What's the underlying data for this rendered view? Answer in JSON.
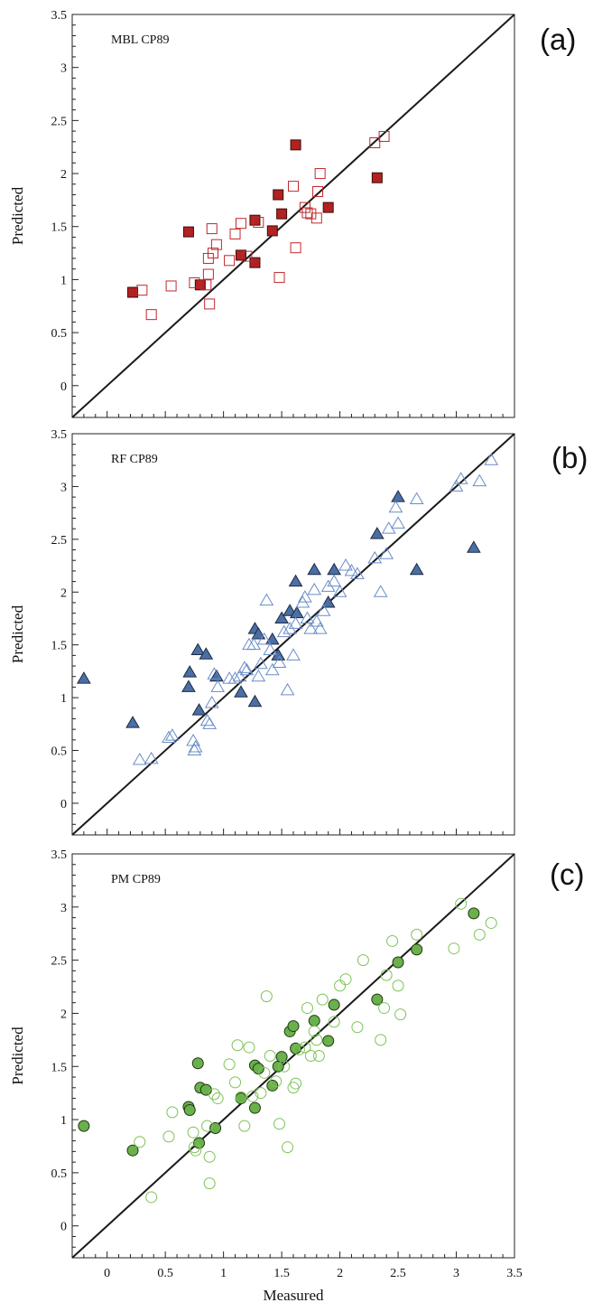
{
  "chart_data": [
    {
      "type": "scatter",
      "panel_label": "(a)",
      "annotation": "MBL CP89",
      "ylabel": "Predicted",
      "xlim": [
        -0.3,
        3.5
      ],
      "ylim": [
        -0.3,
        3.5
      ],
      "yticks": [
        "0",
        "0.5",
        "1",
        "1.5",
        "2",
        "2.5",
        "3",
        "3.5"
      ],
      "identity_line": true,
      "series": [
        {
          "marker": "square",
          "filled": true,
          "color": "#b22222",
          "points": [
            [
              0.22,
              0.88
            ],
            [
              0.8,
              0.95
            ],
            [
              0.7,
              1.45
            ],
            [
              1.15,
              1.23
            ],
            [
              1.27,
              1.16
            ],
            [
              1.27,
              1.56
            ],
            [
              1.42,
              1.46
            ],
            [
              1.47,
              1.8
            ],
            [
              1.5,
              1.62
            ],
            [
              1.62,
              2.27
            ],
            [
              1.9,
              1.68
            ],
            [
              2.32,
              1.96
            ]
          ]
        },
        {
          "marker": "square",
          "filled": false,
          "color": "#c0282d",
          "points": [
            [
              0.3,
              0.9
            ],
            [
              0.38,
              0.67
            ],
            [
              0.55,
              0.94
            ],
            [
              0.75,
              0.97
            ],
            [
              0.85,
              0.95
            ],
            [
              0.87,
              1.05
            ],
            [
              0.87,
              1.2
            ],
            [
              0.88,
              0.77
            ],
            [
              0.9,
              1.48
            ],
            [
              0.91,
              1.25
            ],
            [
              0.94,
              1.33
            ],
            [
              1.05,
              1.18
            ],
            [
              1.1,
              1.43
            ],
            [
              1.15,
              1.53
            ],
            [
              1.2,
              1.22
            ],
            [
              1.3,
              1.54
            ],
            [
              1.48,
              1.02
            ],
            [
              1.6,
              1.88
            ],
            [
              1.62,
              1.3
            ],
            [
              1.7,
              1.68
            ],
            [
              1.72,
              1.63
            ],
            [
              1.75,
              1.62
            ],
            [
              1.8,
              1.58
            ],
            [
              1.81,
              1.83
            ],
            [
              1.83,
              2.0
            ],
            [
              2.3,
              2.29
            ],
            [
              2.38,
              2.35
            ]
          ]
        }
      ]
    },
    {
      "type": "scatter",
      "panel_label": "(b)",
      "annotation": "RF CP89",
      "ylabel": "Predicted",
      "xlim": [
        -0.3,
        3.5
      ],
      "ylim": [
        -0.3,
        3.5
      ],
      "yticks": [
        "0",
        "0.5",
        "1",
        "1.5",
        "2",
        "2.5",
        "3",
        "3.5"
      ],
      "identity_line": true,
      "series": [
        {
          "marker": "triangle",
          "filled": true,
          "color": "#4a6fa5",
          "points": [
            [
              -0.2,
              1.18
            ],
            [
              0.22,
              0.76
            ],
            [
              0.7,
              1.1
            ],
            [
              0.71,
              1.24
            ],
            [
              0.78,
              1.45
            ],
            [
              0.79,
              0.88
            ],
            [
              0.85,
              1.41
            ],
            [
              0.94,
              1.2
            ],
            [
              1.15,
              1.05
            ],
            [
              1.27,
              1.65
            ],
            [
              1.27,
              0.96
            ],
            [
              1.3,
              1.6
            ],
            [
              1.42,
              1.55
            ],
            [
              1.47,
              1.4
            ],
            [
              1.5,
              1.75
            ],
            [
              1.57,
              1.82
            ],
            [
              1.62,
              2.1
            ],
            [
              1.63,
              1.8
            ],
            [
              1.78,
              2.21
            ],
            [
              1.9,
              1.9
            ],
            [
              1.95,
              2.21
            ],
            [
              2.32,
              2.55
            ],
            [
              2.5,
              2.9
            ],
            [
              2.66,
              2.21
            ],
            [
              3.15,
              2.42
            ]
          ]
        },
        {
          "marker": "triangle",
          "filled": false,
          "color": "#6a8cc7",
          "points": [
            [
              0.28,
              0.41
            ],
            [
              0.38,
              0.42
            ],
            [
              0.53,
              0.62
            ],
            [
              0.56,
              0.64
            ],
            [
              0.74,
              0.59
            ],
            [
              0.75,
              0.5
            ],
            [
              0.76,
              0.53
            ],
            [
              0.86,
              0.78
            ],
            [
              0.88,
              0.75
            ],
            [
              0.9,
              0.95
            ],
            [
              0.92,
              1.22
            ],
            [
              0.95,
              1.1
            ],
            [
              1.05,
              1.18
            ],
            [
              1.1,
              1.18
            ],
            [
              1.14,
              1.2
            ],
            [
              1.18,
              1.28
            ],
            [
              1.2,
              1.26
            ],
            [
              1.22,
              1.5
            ],
            [
              1.26,
              1.5
            ],
            [
              1.3,
              1.2
            ],
            [
              1.32,
              1.32
            ],
            [
              1.35,
              1.55
            ],
            [
              1.37,
              1.92
            ],
            [
              1.4,
              1.45
            ],
            [
              1.42,
              1.26
            ],
            [
              1.48,
              1.33
            ],
            [
              1.52,
              1.62
            ],
            [
              1.55,
              1.07
            ],
            [
              1.57,
              1.65
            ],
            [
              1.6,
              1.4
            ],
            [
              1.62,
              1.7
            ],
            [
              1.68,
              1.9
            ],
            [
              1.7,
              1.95
            ],
            [
              1.72,
              1.75
            ],
            [
              1.75,
              1.65
            ],
            [
              1.78,
              2.02
            ],
            [
              1.8,
              1.72
            ],
            [
              1.83,
              1.65
            ],
            [
              1.86,
              1.82
            ],
            [
              1.9,
              2.05
            ],
            [
              1.95,
              2.1
            ],
            [
              2.0,
              2.0
            ],
            [
              2.05,
              2.25
            ],
            [
              2.1,
              2.2
            ],
            [
              2.15,
              2.17
            ],
            [
              2.3,
              2.32
            ],
            [
              2.35,
              2.0
            ],
            [
              2.4,
              2.36
            ],
            [
              2.42,
              2.6
            ],
            [
              2.48,
              2.8
            ],
            [
              2.5,
              2.65
            ],
            [
              2.66,
              2.88
            ],
            [
              3.0,
              3.0
            ],
            [
              3.04,
              3.07
            ],
            [
              3.2,
              3.05
            ],
            [
              3.3,
              3.25
            ]
          ]
        }
      ]
    },
    {
      "type": "scatter",
      "panel_label": "(c)",
      "annotation": "PM CP89",
      "xlabel": "Measured",
      "ylabel": "Predicted",
      "xlim": [
        -0.3,
        3.5
      ],
      "ylim": [
        -0.3,
        3.5
      ],
      "xticks": [
        "0",
        "0.5",
        "1",
        "1.5",
        "2",
        "2.5",
        "3",
        "3.5"
      ],
      "yticks": [
        "0",
        "0.5",
        "1",
        "1.5",
        "2",
        "2.5",
        "3",
        "3.5"
      ],
      "identity_line": true,
      "series": [
        {
          "marker": "circle",
          "filled": true,
          "color": "#6ab04c",
          "points": [
            [
              -0.2,
              0.94
            ],
            [
              0.22,
              0.71
            ],
            [
              0.7,
              1.12
            ],
            [
              0.71,
              1.09
            ],
            [
              0.78,
              1.53
            ],
            [
              0.79,
              0.78
            ],
            [
              0.8,
              1.3
            ],
            [
              0.85,
              1.28
            ],
            [
              0.93,
              0.92
            ],
            [
              1.15,
              1.2
            ],
            [
              1.27,
              1.11
            ],
            [
              1.27,
              1.51
            ],
            [
              1.3,
              1.48
            ],
            [
              1.42,
              1.32
            ],
            [
              1.47,
              1.5
            ],
            [
              1.5,
              1.59
            ],
            [
              1.57,
              1.83
            ],
            [
              1.6,
              1.88
            ],
            [
              1.62,
              1.67
            ],
            [
              1.78,
              1.93
            ],
            [
              1.9,
              1.74
            ],
            [
              1.95,
              2.08
            ],
            [
              2.32,
              2.13
            ],
            [
              2.5,
              2.48
            ],
            [
              2.66,
              2.6
            ],
            [
              3.15,
              2.94
            ]
          ]
        },
        {
          "marker": "circle",
          "filled": false,
          "color": "#7cc356",
          "points": [
            [
              0.28,
              0.79
            ],
            [
              0.38,
              0.27
            ],
            [
              0.53,
              0.84
            ],
            [
              0.56,
              1.07
            ],
            [
              0.74,
              0.88
            ],
            [
              0.75,
              0.74
            ],
            [
              0.76,
              0.71
            ],
            [
              0.86,
              0.94
            ],
            [
              0.88,
              0.65
            ],
            [
              0.88,
              0.4
            ],
            [
              0.92,
              1.24
            ],
            [
              0.95,
              1.2
            ],
            [
              1.05,
              1.52
            ],
            [
              1.1,
              1.35
            ],
            [
              1.12,
              1.7
            ],
            [
              1.15,
              1.21
            ],
            [
              1.18,
              0.94
            ],
            [
              1.22,
              1.68
            ],
            [
              1.25,
              1.22
            ],
            [
              1.32,
              1.25
            ],
            [
              1.35,
              1.44
            ],
            [
              1.37,
              2.16
            ],
            [
              1.4,
              1.6
            ],
            [
              1.45,
              1.36
            ],
            [
              1.48,
              0.96
            ],
            [
              1.52,
              1.5
            ],
            [
              1.55,
              0.74
            ],
            [
              1.6,
              1.3
            ],
            [
              1.62,
              1.34
            ],
            [
              1.65,
              1.66
            ],
            [
              1.7,
              1.68
            ],
            [
              1.72,
              2.05
            ],
            [
              1.75,
              1.6
            ],
            [
              1.78,
              1.83
            ],
            [
              1.8,
              1.75
            ],
            [
              1.82,
              1.6
            ],
            [
              1.85,
              2.13
            ],
            [
              1.95,
              1.92
            ],
            [
              2.0,
              2.26
            ],
            [
              2.05,
              2.32
            ],
            [
              2.15,
              1.87
            ],
            [
              2.2,
              2.5
            ],
            [
              2.35,
              1.75
            ],
            [
              2.38,
              2.05
            ],
            [
              2.4,
              2.36
            ],
            [
              2.45,
              2.68
            ],
            [
              2.5,
              2.26
            ],
            [
              2.52,
              1.99
            ],
            [
              2.66,
              2.74
            ],
            [
              2.98,
              2.61
            ],
            [
              3.04,
              3.03
            ],
            [
              3.2,
              2.74
            ],
            [
              3.3,
              2.85
            ]
          ]
        }
      ]
    }
  ]
}
